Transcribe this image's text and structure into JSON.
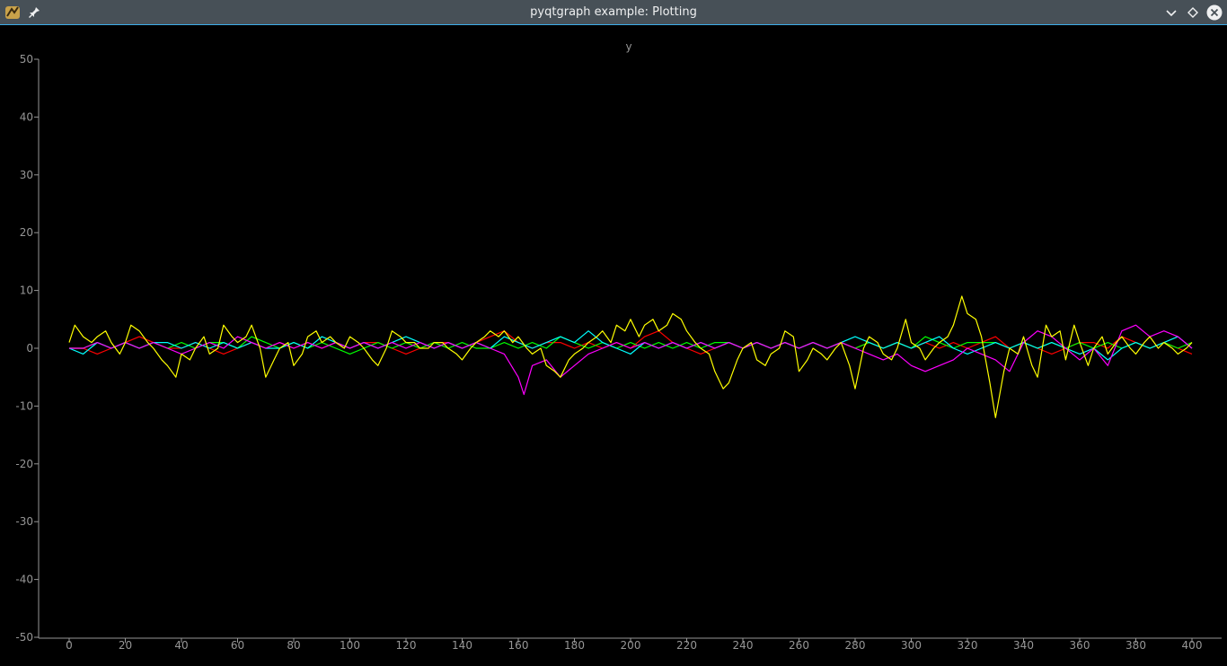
{
  "window": {
    "title": "pyqtgraph example: Plotting",
    "icons": [
      "app-icon",
      "pin-icon",
      "minimize-icon",
      "maximize-icon",
      "close-icon"
    ],
    "titlebar_color": "#475057",
    "accent_color": "#3daee9"
  },
  "plot": {
    "title": "y",
    "background": "#000000",
    "axis_color": "#969696"
  },
  "chart_data": {
    "type": "line",
    "title": "y",
    "xlabel": "",
    "ylabel": "",
    "xlim": [
      -10,
      410
    ],
    "ylim": [
      -50,
      50
    ],
    "xticks": [
      0,
      20,
      40,
      60,
      80,
      100,
      120,
      140,
      160,
      180,
      200,
      220,
      240,
      260,
      280,
      300,
      320,
      340,
      360,
      380,
      400
    ],
    "yticks": [
      50,
      40,
      30,
      20,
      10,
      0,
      -10,
      -20,
      -30,
      -40,
      -50
    ],
    "grid": false,
    "legend": "none",
    "series": [
      {
        "color": "#ff0000",
        "x": [
          0,
          5,
          10,
          15,
          20,
          25,
          30,
          35,
          40,
          45,
          50,
          55,
          60,
          65,
          70,
          75,
          80,
          85,
          90,
          95,
          100,
          105,
          110,
          115,
          120,
          125,
          130,
          135,
          140,
          145,
          150,
          155,
          160,
          165,
          170,
          175,
          180,
          185,
          190,
          195,
          200,
          205,
          210,
          215,
          220,
          225,
          230,
          235,
          240,
          245,
          250,
          255,
          260,
          265,
          270,
          275,
          280,
          285,
          290,
          295,
          300,
          305,
          310,
          315,
          320,
          325,
          330,
          335,
          340,
          345,
          350,
          355,
          360,
          365,
          370,
          375,
          380,
          385,
          390,
          395,
          400
        ],
        "y": [
          0,
          0,
          -1,
          0,
          1,
          2,
          1,
          0,
          0,
          1,
          0,
          -1,
          0,
          1,
          0,
          1,
          0,
          1,
          0,
          1,
          0,
          1,
          1,
          0,
          -1,
          0,
          1,
          1,
          0,
          1,
          2,
          3,
          1,
          0,
          1,
          1,
          0,
          1,
          0,
          1,
          0,
          2,
          3,
          1,
          0,
          -1,
          0,
          1,
          0,
          1,
          0,
          1,
          0,
          1,
          0,
          1,
          0,
          1,
          0,
          1,
          0,
          1,
          0,
          1,
          0,
          1,
          2,
          0,
          1,
          0,
          -1,
          0,
          1,
          1,
          0,
          2,
          1,
          0,
          1,
          0,
          -1
        ]
      },
      {
        "color": "#00ff00",
        "x": [
          0,
          5,
          10,
          15,
          20,
          25,
          30,
          35,
          40,
          45,
          50,
          55,
          60,
          65,
          70,
          75,
          80,
          85,
          90,
          95,
          100,
          105,
          110,
          115,
          120,
          125,
          130,
          135,
          140,
          145,
          150,
          155,
          160,
          165,
          170,
          175,
          180,
          185,
          190,
          195,
          200,
          205,
          210,
          215,
          220,
          225,
          230,
          235,
          240,
          245,
          250,
          255,
          260,
          265,
          270,
          275,
          280,
          285,
          290,
          295,
          300,
          305,
          310,
          315,
          320,
          325,
          330,
          335,
          340,
          345,
          350,
          355,
          360,
          365,
          370,
          375,
          380,
          385,
          390,
          395,
          400
        ],
        "y": [
          0,
          0,
          1,
          0,
          1,
          0,
          1,
          0,
          1,
          0,
          1,
          1,
          0,
          2,
          1,
          0,
          1,
          0,
          1,
          0,
          -1,
          0,
          1,
          0,
          1,
          0,
          1,
          0,
          1,
          0,
          0,
          1,
          0,
          1,
          0,
          2,
          1,
          0,
          1,
          0,
          1,
          0,
          1,
          0,
          1,
          0,
          1,
          1,
          0,
          1,
          0,
          1,
          0,
          1,
          0,
          1,
          0,
          1,
          0,
          1,
          0,
          2,
          1,
          0,
          1,
          1,
          1,
          0,
          1,
          0,
          1,
          0,
          1,
          0,
          1,
          0,
          1,
          0,
          1,
          0,
          1
        ]
      },
      {
        "color": "#00ffff",
        "x": [
          0,
          5,
          10,
          15,
          20,
          25,
          30,
          35,
          40,
          45,
          50,
          55,
          60,
          65,
          70,
          75,
          80,
          85,
          90,
          95,
          100,
          105,
          110,
          115,
          120,
          125,
          130,
          135,
          140,
          145,
          150,
          155,
          160,
          165,
          170,
          175,
          180,
          185,
          190,
          195,
          200,
          205,
          210,
          215,
          220,
          225,
          230,
          235,
          240,
          245,
          250,
          255,
          260,
          265,
          270,
          275,
          280,
          285,
          290,
          295,
          300,
          305,
          310,
          315,
          320,
          325,
          330,
          335,
          340,
          345,
          350,
          355,
          360,
          365,
          370,
          375,
          380,
          385,
          390,
          395,
          400
        ],
        "y": [
          0,
          -1,
          1,
          0,
          1,
          0,
          1,
          1,
          0,
          1,
          0,
          1,
          0,
          1,
          0,
          0,
          1,
          0,
          2,
          1,
          0,
          1,
          0,
          1,
          2,
          1,
          0,
          1,
          0,
          1,
          0,
          2,
          1,
          0,
          1,
          2,
          1,
          3,
          1,
          0,
          -1,
          1,
          0,
          1,
          0,
          1,
          0,
          1,
          0,
          1,
          0,
          1,
          0,
          1,
          0,
          1,
          2,
          1,
          0,
          1,
          0,
          1,
          2,
          0,
          -1,
          0,
          1,
          0,
          1,
          0,
          1,
          0,
          -1,
          0,
          -2,
          0,
          1,
          0,
          1,
          2,
          0
        ]
      },
      {
        "color": "#ff00ff",
        "x": [
          0,
          5,
          10,
          15,
          20,
          25,
          30,
          35,
          40,
          45,
          50,
          55,
          60,
          65,
          70,
          75,
          80,
          85,
          90,
          95,
          100,
          105,
          110,
          115,
          120,
          125,
          130,
          135,
          140,
          145,
          150,
          155,
          160,
          162,
          165,
          170,
          175,
          180,
          185,
          190,
          195,
          200,
          205,
          210,
          215,
          220,
          225,
          230,
          235,
          240,
          245,
          250,
          255,
          260,
          265,
          270,
          275,
          280,
          285,
          290,
          295,
          300,
          305,
          310,
          315,
          320,
          325,
          330,
          335,
          340,
          345,
          350,
          355,
          360,
          365,
          370,
          375,
          380,
          385,
          390,
          395,
          400
        ],
        "y": [
          0,
          0,
          1,
          0,
          1,
          0,
          1,
          0,
          -1,
          0,
          1,
          0,
          2,
          1,
          0,
          1,
          0,
          1,
          0,
          1,
          0,
          1,
          0,
          1,
          0,
          1,
          0,
          1,
          0,
          1,
          0,
          -1,
          -5,
          -8,
          -3,
          -2,
          -5,
          -3,
          -1,
          0,
          1,
          0,
          1,
          0,
          1,
          0,
          1,
          0,
          1,
          0,
          1,
          0,
          1,
          0,
          1,
          0,
          1,
          0,
          -1,
          -2,
          -1,
          -3,
          -4,
          -3,
          -2,
          0,
          -1,
          -2,
          -4,
          1,
          3,
          2,
          0,
          -2,
          0,
          -3,
          3,
          4,
          2,
          3,
          2,
          0
        ]
      },
      {
        "color": "#ffff00",
        "x": [
          0,
          2,
          5,
          8,
          10,
          13,
          15,
          18,
          20,
          22,
          25,
          28,
          30,
          33,
          35,
          38,
          40,
          43,
          45,
          48,
          50,
          53,
          55,
          58,
          60,
          63,
          65,
          68,
          70,
          73,
          75,
          78,
          80,
          83,
          85,
          88,
          90,
          93,
          95,
          98,
          100,
          103,
          105,
          108,
          110,
          113,
          115,
          118,
          120,
          123,
          125,
          128,
          130,
          133,
          135,
          138,
          140,
          143,
          145,
          148,
          150,
          153,
          155,
          158,
          160,
          163,
          165,
          168,
          170,
          173,
          175,
          178,
          180,
          183,
          185,
          188,
          190,
          193,
          195,
          198,
          200,
          203,
          205,
          208,
          210,
          213,
          215,
          218,
          220,
          223,
          225,
          228,
          230,
          233,
          235,
          238,
          240,
          243,
          245,
          248,
          250,
          253,
          255,
          258,
          260,
          263,
          265,
          268,
          270,
          273,
          275,
          278,
          280,
          283,
          285,
          288,
          290,
          293,
          295,
          298,
          300,
          303,
          305,
          308,
          310,
          313,
          315,
          318,
          320,
          323,
          325,
          328,
          330,
          333,
          335,
          338,
          340,
          343,
          345,
          348,
          350,
          353,
          355,
          358,
          360,
          363,
          365,
          368,
          370,
          373,
          375,
          378,
          380,
          383,
          385,
          388,
          390,
          393,
          395,
          398,
          400
        ],
        "y": [
          1,
          4,
          2,
          1,
          2,
          3,
          1,
          -1,
          1,
          4,
          3,
          1,
          0,
          -2,
          -3,
          -5,
          -1,
          -2,
          0,
          2,
          -1,
          0,
          4,
          2,
          1,
          2,
          4,
          0,
          -5,
          -2,
          0,
          1,
          -3,
          -1,
          2,
          3,
          1,
          2,
          1,
          0,
          2,
          1,
          0,
          -2,
          -3,
          0,
          3,
          2,
          1,
          1,
          0,
          0,
          1,
          1,
          0,
          -1,
          -2,
          0,
          1,
          2,
          3,
          2,
          3,
          1,
          2,
          0,
          -1,
          0,
          -3,
          -4,
          -5,
          -2,
          -1,
          0,
          1,
          2,
          3,
          1,
          4,
          3,
          5,
          2,
          4,
          5,
          3,
          4,
          6,
          5,
          3,
          1,
          0,
          -1,
          -4,
          -7,
          -6,
          -2,
          0,
          1,
          -2,
          -3,
          -1,
          0,
          3,
          2,
          -4,
          -2,
          0,
          -1,
          -2,
          0,
          1,
          -3,
          -7,
          0,
          2,
          1,
          -1,
          -2,
          0,
          5,
          1,
          0,
          -2,
          0,
          1,
          2,
          4,
          9,
          6,
          5,
          2,
          -6,
          -12,
          -4,
          0,
          -1,
          2,
          -3,
          -5,
          4,
          2,
          3,
          -2,
          4,
          1,
          -3,
          0,
          2,
          -1,
          1,
          2,
          0,
          -1,
          1,
          2,
          0,
          1,
          0,
          -1,
          0,
          1
        ]
      }
    ]
  }
}
